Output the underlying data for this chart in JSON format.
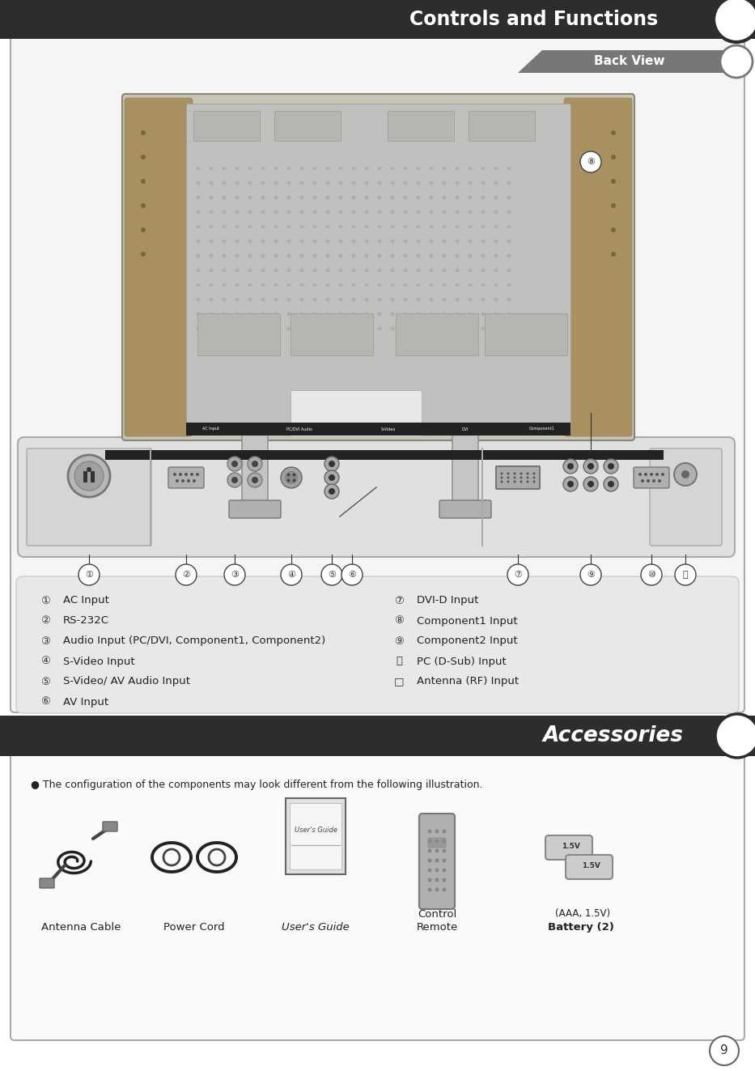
{
  "page_bg": "#ffffff",
  "header_bg": "#2d2d2d",
  "header_text": "Controls and Functions",
  "header_text_color": "#ffffff",
  "section1_label": "Back View",
  "section1_label_bg": "#777777",
  "section1_label_color": "#ffffff",
  "section2_label": "Accessories",
  "section2_label_bg": "#2d2d2d",
  "section2_label_color": "#ffffff",
  "panel_bg": "#f5f5f5",
  "panel_border": "#aaaaaa",
  "info_bg": "#e8e8e8",
  "left_items": [
    [
      "①",
      "AC Input"
    ],
    [
      "②",
      "RS-232C"
    ],
    [
      "③",
      "Audio Input (PC/DVI, Component1, Component2)"
    ],
    [
      "④",
      "S-Video Input"
    ],
    [
      "⑤",
      "S-Video/ AV Audio Input"
    ],
    [
      "⑥",
      "AV Input"
    ]
  ],
  "right_items": [
    [
      "⑦",
      "DVI-D Input"
    ],
    [
      "⑧",
      "Component1 Input"
    ],
    [
      "⑨",
      "Component2 Input"
    ],
    [
      "⑭",
      "PC (D-Sub) Input"
    ],
    [
      "□",
      "Antenna (RF) Input"
    ]
  ],
  "accessories_note": "● The configuration of the components may look different from the following illustration.",
  "accessories": [
    "Antenna Cable",
    "Power Cord",
    "User's Guide",
    "Remote\nControl",
    "Battery (2) (AAA, 1.5V)"
  ],
  "page_number": "9",
  "circle_bg": "#ffffff",
  "tv_body_color": "#c0bfbf",
  "tv_inner_color": "#b8b8b8",
  "tv_side_color": "#a0986e",
  "conn_panel_bg": "#d8d8d8",
  "conn_strip_bg": "#222222"
}
